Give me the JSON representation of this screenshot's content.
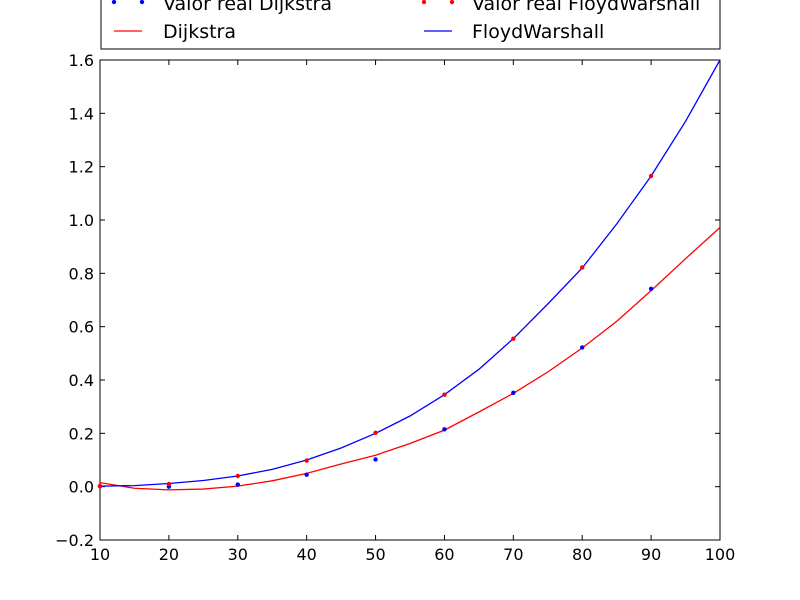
{
  "chart_data": {
    "type": "line",
    "xlim": [
      10,
      100
    ],
    "ylim": [
      -0.2,
      1.6
    ],
    "x_ticks": [
      "10",
      "20",
      "30",
      "40",
      "50",
      "60",
      "70",
      "80",
      "90",
      "100"
    ],
    "y_ticks": [
      "−0.2",
      "0.0",
      "0.2",
      "0.4",
      "0.6",
      "0.8",
      "1.0",
      "1.2",
      "1.4",
      "1.6"
    ],
    "grid": false,
    "legend_position": "top",
    "legend": [
      {
        "label": "Valor real Dijkstra",
        "marker": "points",
        "color": "#0000ff"
      },
      {
        "label": "Valor real FloydWarshall",
        "marker": "points",
        "color": "#ff0000"
      },
      {
        "label": "Dijkstra",
        "marker": "line",
        "color": "#ff0000"
      },
      {
        "label": "FloydWarshall",
        "marker": "line",
        "color": "#0000ff"
      }
    ],
    "series": [
      {
        "name": "Valor real Dijkstra",
        "kind": "scatter",
        "color": "#0000ff",
        "x": [
          10,
          20,
          30,
          40,
          50,
          60,
          70,
          80,
          90
        ],
        "y": [
          0.002,
          0.0,
          0.008,
          0.045,
          0.102,
          0.215,
          0.352,
          0.522,
          0.742
        ]
      },
      {
        "name": "Valor real FloydWarshall",
        "kind": "scatter",
        "color": "#ff0000",
        "x": [
          10,
          20,
          30,
          40,
          50,
          60,
          70,
          80,
          90
        ],
        "y": [
          0.002,
          0.01,
          0.04,
          0.098,
          0.202,
          0.345,
          0.555,
          0.822,
          1.165
        ]
      },
      {
        "name": "Dijkstra",
        "kind": "line",
        "color": "#ff0000",
        "x": [
          10,
          15,
          20,
          25,
          30,
          35,
          40,
          45,
          50,
          55,
          60,
          65,
          70,
          75,
          80,
          85,
          90,
          95,
          100
        ],
        "y": [
          0.015,
          -0.006,
          -0.012,
          -0.009,
          0.002,
          0.022,
          0.05,
          0.085,
          0.118,
          0.162,
          0.212,
          0.28,
          0.35,
          0.43,
          0.52,
          0.62,
          0.735,
          0.855,
          0.972
        ]
      },
      {
        "name": "FloydWarshall",
        "kind": "line",
        "color": "#0000ff",
        "x": [
          10,
          15,
          20,
          25,
          30,
          35,
          40,
          45,
          50,
          55,
          60,
          65,
          70,
          75,
          80,
          85,
          90,
          95,
          100
        ],
        "y": [
          0.002,
          0.004,
          0.012,
          0.023,
          0.04,
          0.065,
          0.1,
          0.145,
          0.2,
          0.265,
          0.345,
          0.44,
          0.555,
          0.685,
          0.82,
          0.985,
          1.165,
          1.37,
          1.6
        ]
      }
    ]
  }
}
